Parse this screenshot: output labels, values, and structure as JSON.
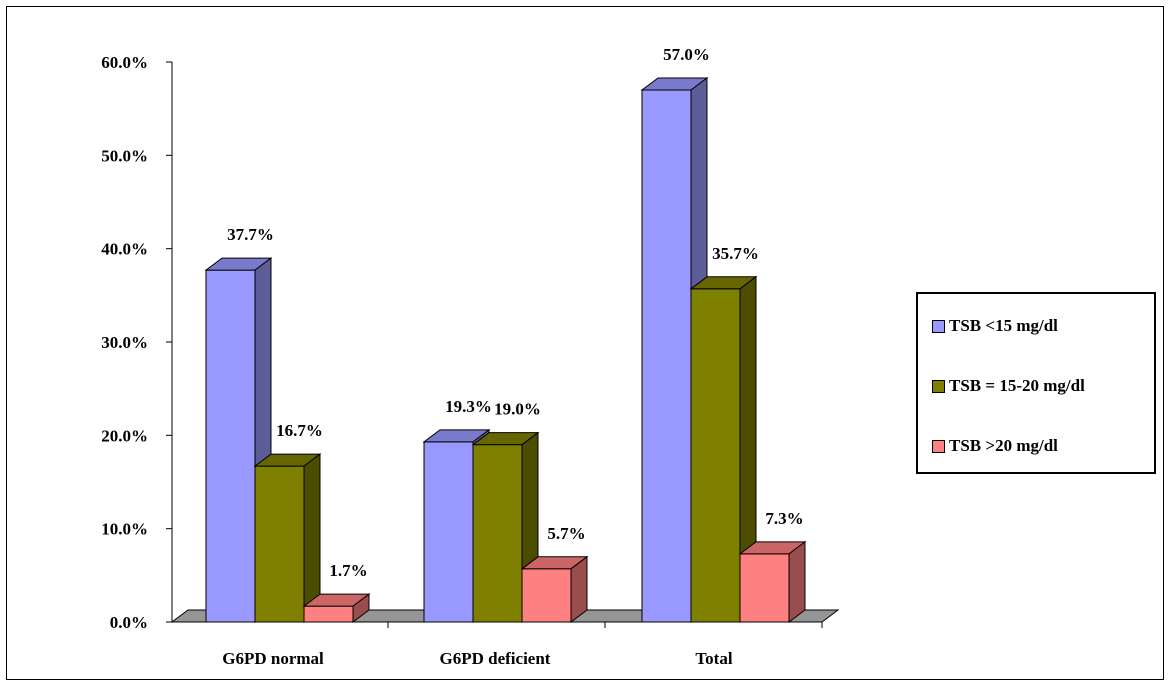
{
  "chart_data": {
    "type": "bar",
    "categories": [
      "G6PD normal",
      "G6PD deficient",
      "Total"
    ],
    "series": [
      {
        "name": "TSB <15 mg/dl",
        "values": [
          37.7,
          19.3,
          57.0
        ],
        "color": "#9999ff"
      },
      {
        "name": "TSB = 15-20 mg/dl",
        "values": [
          16.7,
          19.0,
          35.7
        ],
        "color": "#808000"
      },
      {
        "name": "TSB >20 mg/dl",
        "values": [
          1.7,
          5.7,
          7.3
        ],
        "color": "#ff8080"
      }
    ],
    "data_labels": [
      [
        "37.7%",
        "19.3%",
        "57.0%"
      ],
      [
        "16.7%",
        "19.0%",
        "35.7%"
      ],
      [
        "1.7%",
        "5.7%",
        "7.3%"
      ]
    ],
    "y_ticks": [
      "0.0%",
      "10.0%",
      "20.0%",
      "30.0%",
      "40.0%",
      "50.0%",
      "60.0%"
    ],
    "ylim": [
      0,
      60
    ],
    "grid": false,
    "legend_position": "right",
    "title": "",
    "xlabel": "",
    "ylabel": ""
  }
}
